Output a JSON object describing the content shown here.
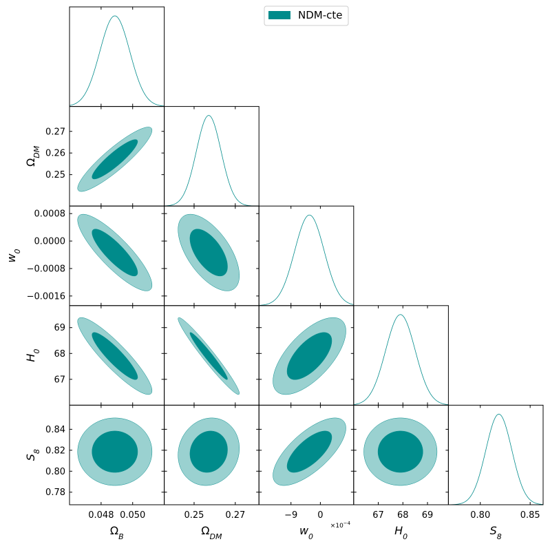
{
  "chart_data": {
    "type": "corner",
    "legend": "NDM-cte",
    "legend_loc": "upper center",
    "color_inner": "#008b8b",
    "color_outer": "#9ad1d0",
    "line_color": "#008b8b",
    "parameters": [
      {
        "symbol": "Ω",
        "sub": "B",
        "mean": 0.04887,
        "sigma": 0.00095,
        "lim": [
          0.046,
          0.052
        ],
        "xticks": [
          0.048,
          {
            "value": 0.05,
            "label": "0.050"
          }
        ]
      },
      {
        "symbol": "Ω",
        "sub": "DM",
        "mean": 0.2571,
        "sigma": 0.006,
        "lim": [
          0.2355,
          0.2815
        ],
        "xticks": [
          0.25,
          0.27
        ],
        "yticks": [
          0.25,
          0.26,
          0.27
        ]
      },
      {
        "symbol": "w",
        "sub": "0",
        "mean": -0.000335,
        "sigma": 0.00045,
        "lim": [
          -0.00188,
          0.00102
        ],
        "xticks": [
          {
            "value": -0.0009,
            "label": "−9"
          },
          0
        ],
        "yticks": [
          {
            "value": -0.0016,
            "label": "−0.0016"
          },
          {
            "value": -0.0008,
            "label": "−0.0008"
          },
          {
            "value": 0,
            "label": "0.0000"
          },
          0.0008
        ],
        "offset": {
          "base": "×10",
          "exp": "−4"
        }
      },
      {
        "symbol": "H",
        "sub": "0",
        "mean": 67.9,
        "sigma": 0.6,
        "lim": [
          66.0,
          69.85
        ],
        "xticks": [
          67,
          68,
          69
        ],
        "yticks": [
          67,
          68,
          69
        ]
      },
      {
        "symbol": "S",
        "sub": "8",
        "mean": 0.8186,
        "sigma": 0.013,
        "lim": [
          0.768,
          0.863
        ],
        "xticks": [
          {
            "value": 0.8,
            "label": "0.80"
          },
          0.85
        ],
        "yticks": [
          0.78,
          {
            "value": 0.8,
            "label": "0.80"
          },
          0.82,
          0.84
        ]
      }
    ],
    "correlations": [
      [],
      [
        0.9
      ],
      [
        -0.85,
        -0.6
      ],
      [
        -0.9,
        -0.97,
        0.65
      ],
      [
        0.0,
        0.1,
        0.7,
        0.0
      ]
    ]
  }
}
